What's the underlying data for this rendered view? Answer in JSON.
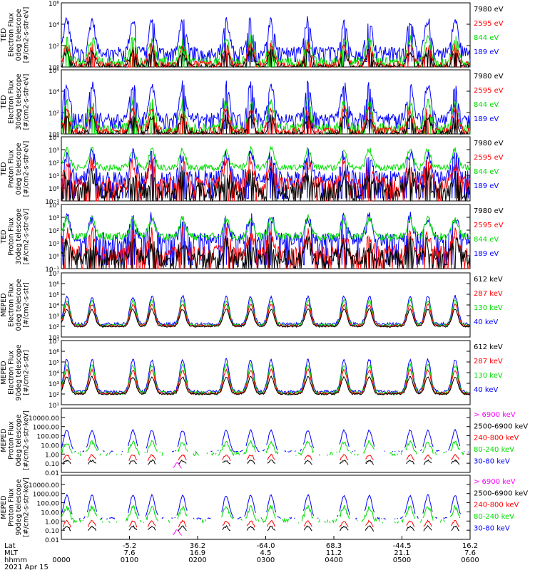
{
  "chart_data": {
    "type": "line",
    "title": "",
    "panels": [
      {
        "ylabel_lines": [
          "TED",
          "Electron Flux",
          "0deg telescope",
          "[#/cm2-s-str-eV]"
        ],
        "scale": "log",
        "ylim": [
          1,
          1000000
        ],
        "tick_labels": [
          "10⁰",
          "10²",
          "10⁴",
          "10⁶"
        ],
        "tick_values": [
          1,
          100,
          10000,
          1000000
        ],
        "series": [
          {
            "name": "189 eV",
            "color": "#0000ff",
            "base": 3,
            "bg": 1.4,
            "noise": 0.5,
            "floor": 2,
            "baseline": 10,
            "mask": "spiky"
          },
          {
            "name": "844 eV",
            "color": "#00dd00",
            "base": 2.2,
            "bg": 0.5,
            "noise": 0.4,
            "floor": 1.3,
            "baseline": 10,
            "mask": "spiky"
          },
          {
            "name": "2595 eV",
            "color": "#ff0000",
            "base": 1.8,
            "bg": 0.2,
            "noise": 0.35,
            "floor": 1.1,
            "baseline": 10,
            "mask": "spiky"
          },
          {
            "name": "7980 eV",
            "color": "#000000",
            "base": 1.5,
            "bg": 0.0,
            "noise": 0.3,
            "floor": 1.0,
            "baseline": 10,
            "mask": "spiky"
          }
        ]
      },
      {
        "ylabel_lines": [
          "TED",
          "Electron Flux",
          "30deg telescope",
          "[#/cm2-s-str-eV]"
        ],
        "scale": "log",
        "ylim": [
          1,
          1000000
        ],
        "tick_labels": [
          "10⁰",
          "10²",
          "10⁴",
          "10⁶"
        ],
        "tick_values": [
          1,
          100,
          10000,
          1000000
        ],
        "series": [
          {
            "name": "189 eV",
            "color": "#0000ff",
            "base": 3.1,
            "bg": 1.5,
            "noise": 0.45,
            "floor": 2,
            "baseline": 10,
            "mask": "spiky"
          },
          {
            "name": "844 eV",
            "color": "#00dd00",
            "base": 2.4,
            "bg": 0.6,
            "noise": 0.4,
            "floor": 1.3,
            "baseline": 10,
            "mask": "spiky"
          },
          {
            "name": "2595 eV",
            "color": "#ff0000",
            "base": 2.0,
            "bg": 0.3,
            "noise": 0.35,
            "floor": 1.1,
            "baseline": 10,
            "mask": "spiky"
          },
          {
            "name": "7980 eV",
            "color": "#000000",
            "base": 1.6,
            "bg": 0.0,
            "noise": 0.3,
            "floor": 1.0,
            "baseline": 10,
            "mask": "spiky"
          }
        ]
      },
      {
        "ylabel_lines": [
          "TED",
          "Proton Flux",
          "0deg telescope",
          "[#/cm2-s-str-eV]"
        ],
        "scale": "log",
        "ylim": [
          0.1,
          10000
        ],
        "tick_labels": [
          "10⁻¹",
          "10⁰",
          "10¹",
          "10²",
          "10³",
          "10⁴"
        ],
        "tick_values": [
          0.1,
          1,
          10,
          100,
          1000,
          10000
        ],
        "series": [
          {
            "name": "844 eV",
            "color": "#00dd00",
            "base": 1.4,
            "bg": 1.6,
            "noise": 0.25,
            "floor": 1.0,
            "baseline": 0.1,
            "mask": "none"
          },
          {
            "name": "189 eV",
            "color": "#0000ff",
            "base": 1.8,
            "bg": 0.8,
            "noise": 0.6,
            "floor": 0.7,
            "baseline": 0.1,
            "mask": "spiky"
          },
          {
            "name": "2595 eV",
            "color": "#ff0000",
            "base": 1.6,
            "bg": 0.3,
            "noise": 0.6,
            "floor": 0.4,
            "baseline": 0.1,
            "mask": "spiky"
          },
          {
            "name": "7980 eV",
            "color": "#000000",
            "base": 1.2,
            "bg": -0.2,
            "noise": 0.7,
            "floor": 0.2,
            "baseline": 0.1,
            "mask": "spiky"
          }
        ]
      },
      {
        "ylabel_lines": [
          "TED",
          "Proton Flux",
          "30deg telescope",
          "[#/cm2-s-str-eV]"
        ],
        "scale": "log",
        "ylim": [
          0.1,
          10000
        ],
        "tick_labels": [
          "10⁻¹",
          "10⁰",
          "10¹",
          "10²",
          "10³",
          "10⁴"
        ],
        "tick_values": [
          0.1,
          1,
          10,
          100,
          1000,
          10000
        ],
        "series": [
          {
            "name": "189 eV",
            "color": "#0000ff",
            "base": 1.7,
            "bg": 1.3,
            "noise": 0.5,
            "floor": 0.8,
            "baseline": 0.1,
            "mask": "spiky"
          },
          {
            "name": "844 eV",
            "color": "#00dd00",
            "base": 1.4,
            "bg": 1.5,
            "noise": 0.3,
            "floor": 1.0,
            "baseline": 0.1,
            "mask": "none"
          },
          {
            "name": "2595 eV",
            "color": "#ff0000",
            "base": 1.5,
            "bg": 0.2,
            "noise": 0.6,
            "floor": 0.4,
            "baseline": 0.1,
            "mask": "spiky"
          },
          {
            "name": "7980 eV",
            "color": "#000000",
            "base": 1.2,
            "bg": -0.2,
            "noise": 0.7,
            "floor": 0.2,
            "baseline": 0.1,
            "mask": "spiky"
          }
        ]
      },
      {
        "ylabel_lines": [
          "MEPED",
          "Electron Flux",
          "0deg telescope",
          "[#/cm2-s-str]"
        ],
        "scale": "log",
        "ylim": [
          10,
          10000000
        ],
        "tick_labels": [
          "10¹",
          "10²",
          "10³",
          "10⁴",
          "10⁵",
          "10⁶",
          "10⁷"
        ],
        "tick_values": [
          10,
          100,
          1000,
          10000,
          100000,
          1000000,
          10000000
        ],
        "series": [
          {
            "name": "40 keV",
            "color": "#0000ff",
            "base": 2.6,
            "bg": 2.2,
            "noise": 0.15,
            "floor": 2.1,
            "baseline": 10,
            "mask": "none"
          },
          {
            "name": "130 keV",
            "color": "#00dd00",
            "base": 2.3,
            "bg": 2.1,
            "noise": 0.12,
            "floor": 2.05,
            "baseline": 10,
            "mask": "none"
          },
          {
            "name": "287 keV",
            "color": "#ff0000",
            "base": 2.0,
            "bg": 2.05,
            "noise": 0.1,
            "floor": 2.0,
            "baseline": 10,
            "mask": "none"
          },
          {
            "name": "612 keV",
            "color": "#000000",
            "base": 1.6,
            "bg": 2.0,
            "noise": 0.08,
            "floor": 2.0,
            "baseline": 10,
            "mask": "none"
          }
        ]
      },
      {
        "ylabel_lines": [
          "MEPED",
          "Electron Flux",
          "90deg telescope",
          "[#/cm2-s-str]"
        ],
        "scale": "log",
        "ylim": [
          10,
          10000000
        ],
        "tick_labels": [
          "10¹",
          "10²",
          "10³",
          "10⁴",
          "10⁵",
          "10⁶",
          "10⁷"
        ],
        "tick_values": [
          10,
          100,
          1000,
          10000,
          100000,
          1000000,
          10000000
        ],
        "series": [
          {
            "name": "40 keV",
            "color": "#0000ff",
            "base": 3.0,
            "bg": 2.2,
            "noise": 0.15,
            "floor": 2.1,
            "baseline": 10,
            "mask": "none"
          },
          {
            "name": "130 keV",
            "color": "#00dd00",
            "base": 2.6,
            "bg": 2.1,
            "noise": 0.15,
            "floor": 2.05,
            "baseline": 10,
            "mask": "none"
          },
          {
            "name": "287 keV",
            "color": "#ff0000",
            "base": 2.2,
            "bg": 2.05,
            "noise": 0.1,
            "floor": 2.0,
            "baseline": 10,
            "mask": "none"
          },
          {
            "name": "612 keV",
            "color": "#000000",
            "base": 1.6,
            "bg": 2.0,
            "noise": 0.08,
            "floor": 2.0,
            "baseline": 10,
            "mask": "none"
          }
        ]
      },
      {
        "ylabel_lines": [
          "MEPED",
          "Proton Flux",
          "0deg telescope",
          "[#/cm2-s-str-keV]"
        ],
        "scale": "log",
        "ylim": [
          0.01,
          100000
        ],
        "tick_labels": [
          "0.01",
          "0.10",
          "1.00",
          "10.00",
          "100.00",
          "1000.00",
          "10000.00"
        ],
        "tick_values": [
          0.01,
          0.1,
          1,
          10,
          100,
          1000,
          10000
        ],
        "series": [
          {
            "name": "30-80 keV",
            "color": "#0000ff",
            "base": 2.3,
            "bg": 0.3,
            "noise": 0.1,
            "floor": 0.25,
            "baseline": 0.01,
            "mask": "dots"
          },
          {
            "name": "80-240 keV",
            "color": "#00dd00",
            "base": 1.3,
            "bg": 0.0,
            "noise": 0.2,
            "floor": -0.2,
            "baseline": 0.01,
            "mask": "dots"
          },
          {
            "name": "240-800 keV",
            "color": "#ff0000",
            "base": 0.9,
            "bg": -1.0,
            "noise": 0.1,
            "floor": -1.0,
            "baseline": 0.01,
            "mask": "sparse"
          },
          {
            "name": "2500-6900 keV",
            "color": "#000000",
            "base": 0.6,
            "bg": -1.3,
            "noise": 0.1,
            "floor": -1.3,
            "baseline": 0.01,
            "mask": "sparse"
          },
          {
            "name": "> 6900 keV",
            "color": "#ff00ff",
            "base": 0.3,
            "bg": -1.7,
            "noise": 0.05,
            "floor": -1.7,
            "baseline": 0.01,
            "mask": "saa"
          }
        ]
      },
      {
        "ylabel_lines": [
          "MEPED",
          "Proton Flux",
          "90deg telescope",
          "[#/cm2-s-str-keV]"
        ],
        "scale": "log",
        "ylim": [
          0.01,
          100000
        ],
        "tick_labels": [
          "0.01",
          "0.10",
          "1.00",
          "10.00",
          "100.00",
          "1000.00",
          "10000.00"
        ],
        "tick_values": [
          0.01,
          0.1,
          1,
          10,
          100,
          1000,
          10000
        ],
        "series": [
          {
            "name": "30-80 keV",
            "color": "#0000ff",
            "base": 2.5,
            "bg": 0.3,
            "noise": 0.1,
            "floor": 0.25,
            "baseline": 0.01,
            "mask": "dots"
          },
          {
            "name": "80-240 keV",
            "color": "#00dd00",
            "base": 1.5,
            "bg": 0.0,
            "noise": 0.25,
            "floor": -0.1,
            "baseline": 0.01,
            "mask": "dots"
          },
          {
            "name": "240-800 keV",
            "color": "#ff0000",
            "base": 1.0,
            "bg": -1.0,
            "noise": 0.1,
            "floor": -1.0,
            "baseline": 0.01,
            "mask": "sparse"
          },
          {
            "name": "2500-6900 keV",
            "color": "#000000",
            "base": 0.7,
            "bg": -1.3,
            "noise": 0.1,
            "floor": -1.3,
            "baseline": 0.01,
            "mask": "sparse"
          },
          {
            "name": "> 6900 keV",
            "color": "#ff00ff",
            "base": 0.3,
            "bg": -1.7,
            "noise": 0.05,
            "floor": -1.7,
            "baseline": 0.01,
            "mask": "saa"
          }
        ]
      }
    ],
    "x_axis": {
      "row_labels": [
        "Lat",
        "MLT",
        "hhmm",
        "2021 Apr 15"
      ],
      "time_range_hours": [
        0,
        6
      ],
      "ticks": [
        {
          "t": 0,
          "lat": "",
          "mlt": "",
          "hhmm": "0000"
        },
        {
          "t": 1,
          "lat": "-5.2",
          "mlt": "7.6",
          "hhmm": "0100"
        },
        {
          "t": 2,
          "lat": "36.2",
          "mlt": "16.9",
          "hhmm": "0200"
        },
        {
          "t": 3,
          "lat": "-64.0",
          "mlt": "4.5",
          "hhmm": "0300"
        },
        {
          "t": 4,
          "lat": "68.3",
          "mlt": "11.2",
          "hhmm": "0400"
        },
        {
          "t": 5,
          "lat": "-44.5",
          "mlt": "21.1",
          "hhmm": "0500"
        },
        {
          "t": 6,
          "lat": "16.2",
          "mlt": "7.6",
          "hhmm": "0600"
        }
      ]
    },
    "radiation_belt_crossings_hours": [
      0.08,
      0.45,
      1.05,
      1.33,
      1.78,
      2.42,
      2.78,
      3.08,
      3.62,
      4.15,
      4.52,
      5.12,
      5.38,
      5.78
    ],
    "saa_hour": 1.7
  }
}
